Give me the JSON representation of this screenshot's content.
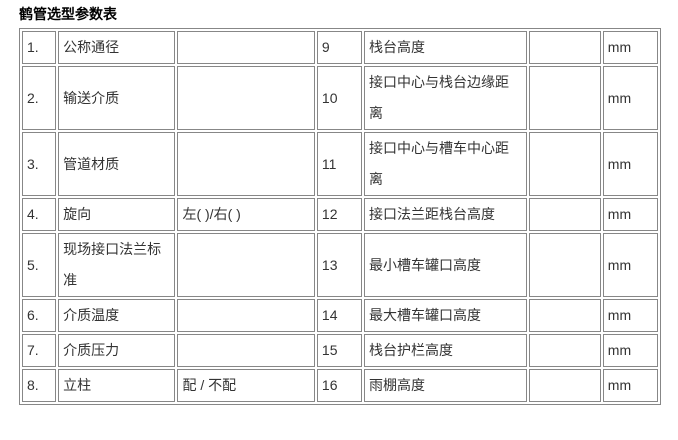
{
  "page": {
    "title": "鹤管选型参数表"
  },
  "colors": {
    "border": "#878787",
    "text": "#333333",
    "title": "#000000",
    "background": "#ffffff"
  },
  "table": {
    "rows": [
      {
        "no_left": "1.",
        "param_left": "公称通径",
        "value_left": "",
        "no_right": "9",
        "param_right": "栈台高度",
        "value_right": "",
        "unit": "mm"
      },
      {
        "no_left": "2.",
        "param_left": "输送介质",
        "value_left": "",
        "no_right": "10",
        "param_right": "接口中心与栈台边缘距离",
        "value_right": "",
        "unit": "mm"
      },
      {
        "no_left": "3.",
        "param_left": "管道材质",
        "value_left": "",
        "no_right": "11",
        "param_right": "接口中心与槽车中心距离",
        "value_right": "",
        "unit": "mm"
      },
      {
        "no_left": "4.",
        "param_left": "旋向",
        "value_left": "左( )/右( )",
        "no_right": "12",
        "param_right": "接口法兰距栈台高度",
        "value_right": "",
        "unit": "mm"
      },
      {
        "no_left": "5.",
        "param_left": "现场接口法兰标准",
        "value_left": "",
        "no_right": "13",
        "param_right": "最小槽车罐口高度",
        "value_right": "",
        "unit": "mm"
      },
      {
        "no_left": "6.",
        "param_left": "介质温度",
        "value_left": "",
        "no_right": "14",
        "param_right": "最大槽车罐口高度",
        "value_right": "",
        "unit": "mm"
      },
      {
        "no_left": "7.",
        "param_left": "介质压力",
        "value_left": "",
        "no_right": "15",
        "param_right": "栈台护栏高度",
        "value_right": "",
        "unit": "mm"
      },
      {
        "no_left": "8.",
        "param_left": "立柱",
        "value_left": "配 / 不配",
        "no_right": "16",
        "param_right": "雨棚高度",
        "value_right": "",
        "unit": "mm"
      }
    ]
  }
}
